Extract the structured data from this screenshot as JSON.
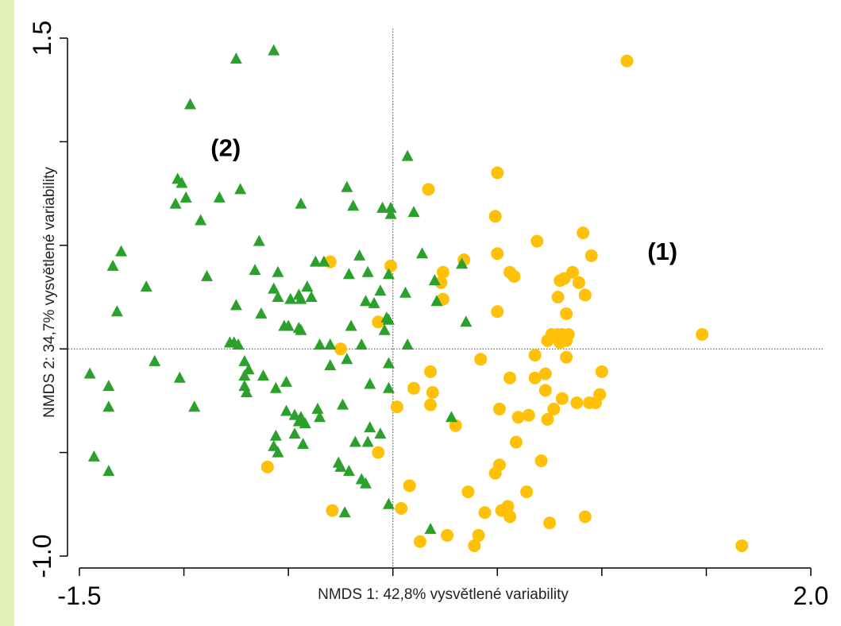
{
  "chart_data": {
    "type": "scatter",
    "xlabel": "NMDS 1: 42,8% vysvětlené variability",
    "ylabel": "NMDS 2: 34,7% vysvětlené variability",
    "xlim": [
      -1.5,
      2.0
    ],
    "ylim": [
      -1.0,
      1.5
    ],
    "x_tick_values": [
      -1.5,
      -1.0,
      -0.5,
      0.0,
      0.5,
      1.0,
      1.5,
      2.0
    ],
    "x_tick_labels": [
      "-1.5",
      "",
      "",
      "",
      "",
      "",
      "",
      "2.0"
    ],
    "y_tick_values": [
      -1.0,
      -0.5,
      0.0,
      0.5,
      1.0,
      1.5
    ],
    "y_tick_labels": [
      "-1.0",
      "",
      "",
      "",
      "",
      "1.5"
    ],
    "reference_lines": {
      "x": 0,
      "y": 0,
      "style": "dotted"
    },
    "annotations": [
      {
        "text": "(1)",
        "x": 1.29,
        "y": 0.43
      },
      {
        "text": "(2)",
        "x": -0.8,
        "y": 0.93
      }
    ],
    "series": [
      {
        "marker": "circle",
        "color": "#ffc107",
        "points": [
          [
            1.12,
            1.39
          ],
          [
            0.5,
            0.85
          ],
          [
            0.17,
            0.77
          ],
          [
            0.49,
            0.64
          ],
          [
            0.69,
            0.52
          ],
          [
            0.91,
            0.56
          ],
          [
            0.5,
            0.46
          ],
          [
            0.95,
            0.45
          ],
          [
            0.34,
            0.43
          ],
          [
            0.24,
            0.37
          ],
          [
            0.23,
            0.32
          ],
          [
            0.56,
            0.37
          ],
          [
            0.58,
            0.35
          ],
          [
            -0.3,
            0.42
          ],
          [
            -0.01,
            0.4
          ],
          [
            0.86,
            0.37
          ],
          [
            0.82,
            0.34
          ],
          [
            0.89,
            0.32
          ],
          [
            0.8,
            0.33
          ],
          [
            0.92,
            0.26
          ],
          [
            0.79,
            0.25
          ],
          [
            0.24,
            0.24
          ],
          [
            0.5,
            0.18
          ],
          [
            -0.07,
            0.13
          ],
          [
            0.83,
            0.17
          ],
          [
            0.79,
            0.07
          ],
          [
            0.76,
            0.07
          ],
          [
            0.81,
            0.07
          ],
          [
            0.84,
            0.07
          ],
          [
            0.74,
            0.04
          ],
          [
            0.8,
            0.03
          ],
          [
            0.83,
            0.04
          ],
          [
            1.48,
            0.07
          ],
          [
            -0.25,
            0.0
          ],
          [
            0.42,
            -0.05
          ],
          [
            0.68,
            -0.03
          ],
          [
            0.83,
            -0.04
          ],
          [
            0.18,
            -0.11
          ],
          [
            0.73,
            -0.12
          ],
          [
            1.0,
            -0.11
          ],
          [
            0.68,
            -0.14
          ],
          [
            0.1,
            -0.19
          ],
          [
            0.19,
            -0.21
          ],
          [
            0.56,
            -0.14
          ],
          [
            0.73,
            -0.2
          ],
          [
            0.81,
            -0.24
          ],
          [
            0.99,
            -0.22
          ],
          [
            0.94,
            -0.26
          ],
          [
            0.88,
            -0.26
          ],
          [
            0.97,
            -0.26
          ],
          [
            0.18,
            -0.27
          ],
          [
            0.02,
            -0.28
          ],
          [
            0.77,
            -0.29
          ],
          [
            0.51,
            -0.29
          ],
          [
            0.6,
            -0.33
          ],
          [
            0.65,
            -0.32
          ],
          [
            0.74,
            -0.34
          ],
          [
            0.3,
            -0.37
          ],
          [
            0.59,
            -0.45
          ],
          [
            -0.07,
            -0.5
          ],
          [
            0.71,
            -0.54
          ],
          [
            0.51,
            -0.56
          ],
          [
            0.49,
            -0.6
          ],
          [
            -0.6,
            -0.57
          ],
          [
            0.08,
            -0.66
          ],
          [
            0.36,
            -0.69
          ],
          [
            0.64,
            -0.69
          ],
          [
            0.55,
            -0.76
          ],
          [
            0.04,
            -0.77
          ],
          [
            -0.29,
            -0.78
          ],
          [
            0.44,
            -0.79
          ],
          [
            0.52,
            -0.78
          ],
          [
            0.56,
            -0.81
          ],
          [
            0.92,
            -0.81
          ],
          [
            0.75,
            -0.84
          ],
          [
            0.13,
            -0.93
          ],
          [
            0.26,
            -0.9
          ],
          [
            0.41,
            -0.9
          ],
          [
            0.39,
            -0.95
          ],
          [
            1.67,
            -0.95
          ]
        ]
      },
      {
        "marker": "triangle",
        "color": "#2ca02c",
        "points": [
          [
            -0.57,
            1.44
          ],
          [
            -0.75,
            1.4
          ],
          [
            -0.97,
            1.18
          ],
          [
            0.07,
            0.93
          ],
          [
            -1.03,
            0.82
          ],
          [
            -1.01,
            0.8
          ],
          [
            -0.73,
            0.77
          ],
          [
            -0.83,
            0.73
          ],
          [
            -0.99,
            0.73
          ],
          [
            -1.04,
            0.7
          ],
          [
            -0.22,
            0.78
          ],
          [
            -0.44,
            0.7
          ],
          [
            -0.19,
            0.69
          ],
          [
            -0.05,
            0.68
          ],
          [
            -0.01,
            0.68
          ],
          [
            0.1,
            0.66
          ],
          [
            -0.92,
            0.62
          ],
          [
            -0.01,
            0.65
          ],
          [
            -1.3,
            0.47
          ],
          [
            -0.64,
            0.52
          ],
          [
            -0.37,
            0.42
          ],
          [
            -0.33,
            0.42
          ],
          [
            -0.16,
            0.45
          ],
          [
            0.14,
            0.46
          ],
          [
            -1.34,
            0.4
          ],
          [
            -0.66,
            0.38
          ],
          [
            0.33,
            0.41
          ],
          [
            -0.89,
            0.35
          ],
          [
            -0.55,
            0.37
          ],
          [
            -0.21,
            0.36
          ],
          [
            -0.12,
            0.37
          ],
          [
            -0.02,
            0.36
          ],
          [
            -1.18,
            0.3
          ],
          [
            -0.41,
            0.3
          ],
          [
            0.2,
            0.33
          ],
          [
            -0.57,
            0.29
          ],
          [
            -0.45,
            0.26
          ],
          [
            -0.06,
            0.28
          ],
          [
            0.06,
            0.27
          ],
          [
            -0.55,
            0.25
          ],
          [
            -0.49,
            0.24
          ],
          [
            -0.44,
            0.24
          ],
          [
            -0.39,
            0.25
          ],
          [
            -0.75,
            0.21
          ],
          [
            -0.63,
            0.17
          ],
          [
            -0.13,
            0.23
          ],
          [
            -0.09,
            0.22
          ],
          [
            -1.32,
            0.18
          ],
          [
            0.21,
            0.23
          ],
          [
            -0.03,
            0.15
          ],
          [
            0.35,
            0.13
          ],
          [
            -0.52,
            0.11
          ],
          [
            -0.5,
            0.11
          ],
          [
            -0.45,
            0.1
          ],
          [
            -0.44,
            0.09
          ],
          [
            -0.2,
            0.11
          ],
          [
            -0.02,
            0.14
          ],
          [
            -0.04,
            0.09
          ],
          [
            -0.78,
            0.03
          ],
          [
            -0.76,
            0.03
          ],
          [
            -0.74,
            0.02
          ],
          [
            -0.35,
            0.02
          ],
          [
            -0.3,
            0.02
          ],
          [
            -0.15,
            0.02
          ],
          [
            0.07,
            0.02
          ],
          [
            -1.14,
            -0.06
          ],
          [
            -0.71,
            -0.06
          ],
          [
            -0.69,
            -0.1
          ],
          [
            -0.22,
            -0.05
          ],
          [
            -0.3,
            -0.08
          ],
          [
            -0.02,
            -0.07
          ],
          [
            -1.45,
            -0.12
          ],
          [
            -1.02,
            -0.14
          ],
          [
            -0.71,
            -0.13
          ],
          [
            -0.62,
            -0.13
          ],
          [
            -0.51,
            -0.16
          ],
          [
            -0.11,
            -0.17
          ],
          [
            -0.71,
            -0.18
          ],
          [
            -1.36,
            -0.18
          ],
          [
            -0.56,
            -0.19
          ],
          [
            -0.02,
            -0.19
          ],
          [
            -0.7,
            -0.21
          ],
          [
            -0.24,
            -0.27
          ],
          [
            -0.36,
            -0.29
          ],
          [
            -1.36,
            -0.28
          ],
          [
            -0.51,
            -0.3
          ],
          [
            -0.95,
            -0.28
          ],
          [
            -0.47,
            -0.32
          ],
          [
            -0.44,
            -0.33
          ],
          [
            -0.35,
            -0.33
          ],
          [
            0.28,
            -0.33
          ],
          [
            -0.45,
            -0.35
          ],
          [
            -0.42,
            -0.36
          ],
          [
            -0.11,
            -0.38
          ],
          [
            -0.06,
            -0.41
          ],
          [
            -0.56,
            -0.42
          ],
          [
            -0.47,
            -0.41
          ],
          [
            -0.18,
            -0.45
          ],
          [
            -0.43,
            -0.46
          ],
          [
            -0.12,
            -0.45
          ],
          [
            -0.57,
            -0.47
          ],
          [
            -0.55,
            -0.5
          ],
          [
            -0.26,
            -0.55
          ],
          [
            -0.25,
            -0.57
          ],
          [
            -0.21,
            -0.59
          ],
          [
            -1.43,
            -0.52
          ],
          [
            -1.36,
            -0.59
          ],
          [
            -0.15,
            -0.63
          ],
          [
            -0.13,
            -0.65
          ],
          [
            -0.02,
            -0.75
          ],
          [
            -0.23,
            -0.79
          ],
          [
            0.18,
            -0.87
          ]
        ]
      }
    ]
  }
}
